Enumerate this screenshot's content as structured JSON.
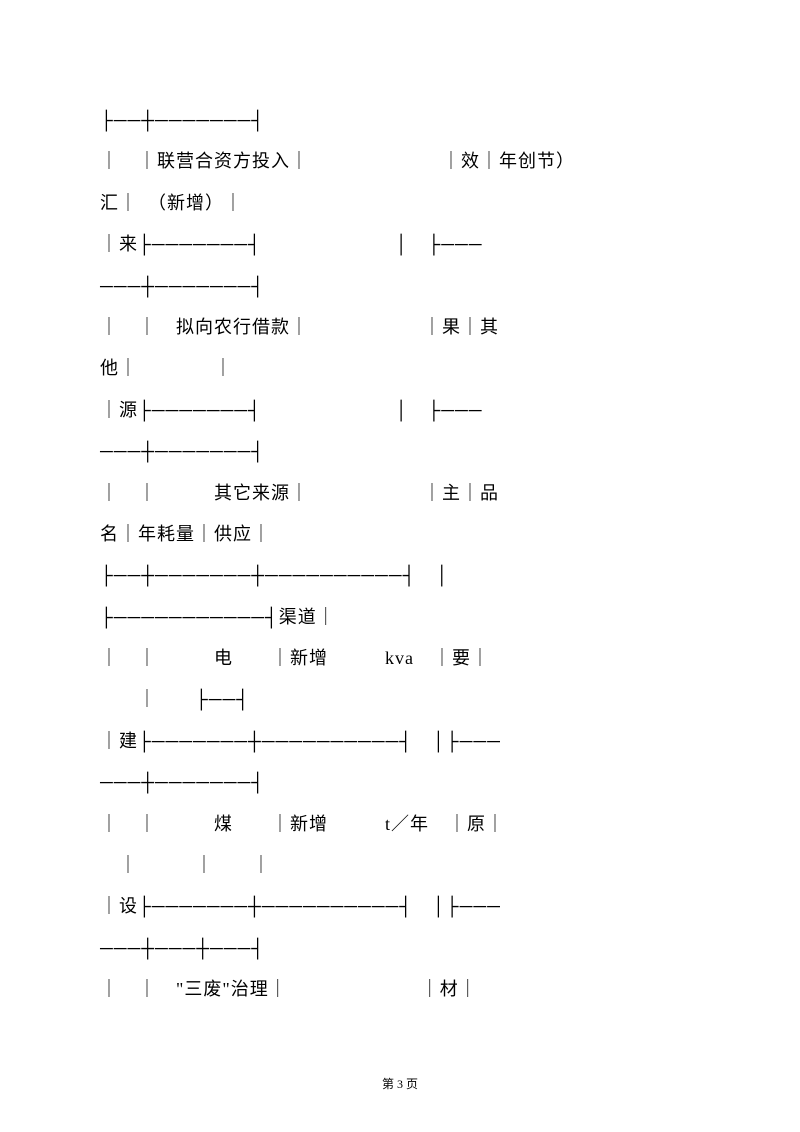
{
  "lines": {
    "l1": "├──┼───────┤",
    "l2": "｜　｜联营合资方投入｜　　　　　　　｜效｜年创节）",
    "l3": "汇｜　（新增）｜",
    "l4": "｜来├───────┤　　　　　　　│　├───",
    "l5": "───┼───────┤",
    "l6": "｜　｜　拟向农行借款｜　　　　　　｜果｜其　　　",
    "l7": "他｜　　　　｜",
    "l8": "｜源├───────┤　　　　　　　│　├───",
    "l9": "───┼───────┤",
    "l10": "｜　｜　　　其它来源｜　　　　　　｜主｜品　　　",
    "l11": "名｜年耗量｜供应｜",
    "l12": "├──┼───────┼──────────┤　│",
    "l13": "├───────────┤渠道｜",
    "l14": "｜　｜　　　电　　｜新增　　　kva　｜要｜",
    "l15": "　　｜　　├──┤",
    "l16": "｜建├───────┼──────────┤　│├───",
    "l17": "───┼───────┤",
    "l18": "｜　｜　　　煤　　｜新增　　　t／年　｜原｜",
    "l19": "　｜　　　｜　　｜",
    "l20": "｜设├───────┼──────────┤　│├───",
    "l21": "───┼───┼───┤",
    "l22": "｜　｜　\"三废\"治理｜　　　　　　　｜材｜"
  },
  "footer": "第 3 页"
}
